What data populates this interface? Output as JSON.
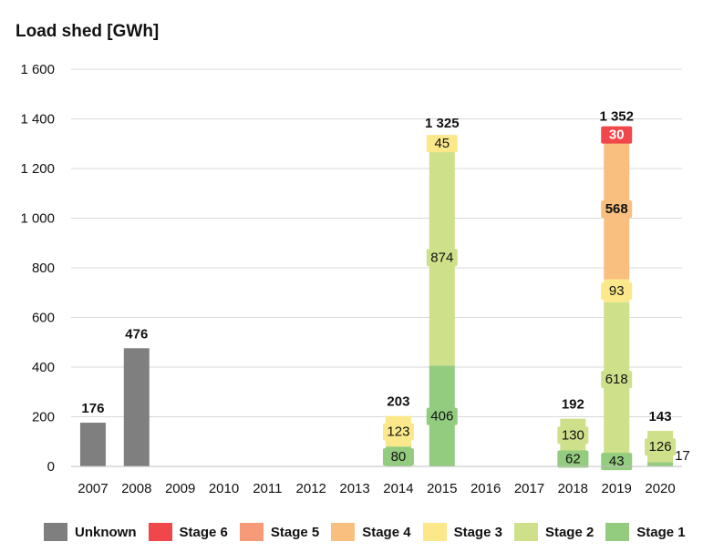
{
  "chart_data": {
    "type": "bar",
    "stacked": true,
    "title": "Load shed [GWh]",
    "xlabel": "",
    "ylabel": "",
    "ylim": [
      0,
      1600
    ],
    "yticks": [
      0,
      200,
      400,
      600,
      800,
      1000,
      1200,
      1400,
      1600
    ],
    "ytick_labels": [
      "0",
      "200",
      "400",
      "600",
      "800",
      "1 000",
      "1 200",
      "1 400",
      "1 600"
    ],
    "categories": [
      "2007",
      "2008",
      "2009",
      "2010",
      "2011",
      "2012",
      "2013",
      "2014",
      "2015",
      "2016",
      "2017",
      "2018",
      "2019",
      "2020"
    ],
    "series": [
      {
        "name": "Unknown",
        "color": "#7f7f7f",
        "values": [
          176,
          476,
          0,
          0,
          0,
          0,
          0,
          0,
          0,
          0,
          0,
          0,
          0,
          0
        ]
      },
      {
        "name": "Stage 1",
        "color": "#93cc7f",
        "values": [
          0,
          0,
          0,
          0,
          0,
          0,
          0,
          80,
          406,
          0,
          0,
          62,
          43,
          17
        ]
      },
      {
        "name": "Stage 2",
        "color": "#cfe08a",
        "values": [
          0,
          0,
          0,
          0,
          0,
          0,
          0,
          0,
          874,
          0,
          0,
          130,
          618,
          126
        ]
      },
      {
        "name": "Stage 3",
        "color": "#fbe88a",
        "values": [
          0,
          0,
          0,
          0,
          0,
          0,
          0,
          123,
          45,
          0,
          0,
          0,
          93,
          0
        ]
      },
      {
        "name": "Stage 4",
        "color": "#f9bf7f",
        "values": [
          0,
          0,
          0,
          0,
          0,
          0,
          0,
          0,
          0,
          0,
          0,
          0,
          568,
          0
        ]
      },
      {
        "name": "Stage 5",
        "color": "#f79a78",
        "values": [
          0,
          0,
          0,
          0,
          0,
          0,
          0,
          0,
          0,
          0,
          0,
          0,
          0,
          0
        ]
      },
      {
        "name": "Stage 6",
        "color": "#f0474a",
        "values": [
          0,
          0,
          0,
          0,
          0,
          0,
          0,
          0,
          0,
          0,
          0,
          0,
          30,
          0
        ]
      }
    ],
    "totals": [
      {
        "category": "2007",
        "label": "176"
      },
      {
        "category": "2008",
        "label": "476"
      },
      {
        "category": "2014",
        "label": "203"
      },
      {
        "category": "2015",
        "label": "1 325"
      },
      {
        "category": "2018",
        "label": "192"
      },
      {
        "category": "2019",
        "label": "1 352"
      },
      {
        "category": "2020",
        "label": "143"
      }
    ],
    "legend": {
      "position": "bottom",
      "entries": [
        {
          "name": "Unknown",
          "color": "#7f7f7f"
        },
        {
          "name": "Stage 6",
          "color": "#f0474a"
        },
        {
          "name": "Stage 5",
          "color": "#f79a78"
        },
        {
          "name": "Stage 4",
          "color": "#f9bf7f"
        },
        {
          "name": "Stage 3",
          "color": "#fbe88a"
        },
        {
          "name": "Stage 2",
          "color": "#cfe08a"
        },
        {
          "name": "Stage 1",
          "color": "#93cc7f"
        }
      ]
    },
    "grid": true,
    "gridline_color": "#d9d9d9"
  }
}
